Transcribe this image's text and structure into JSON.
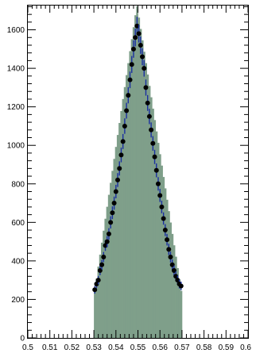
{
  "chart_data": {
    "type": "bar",
    "title": "",
    "xlabel": "",
    "ylabel": "",
    "xlim": [
      0.5,
      0.6
    ],
    "ylim": [
      0,
      1730
    ],
    "x_ticks": [
      {
        "value": 0.5,
        "label": "0.5"
      },
      {
        "value": 0.51,
        "label": "0.51"
      },
      {
        "value": 0.52,
        "label": "0.52"
      },
      {
        "value": 0.53,
        "label": "0.53"
      },
      {
        "value": 0.54,
        "label": "0.54"
      },
      {
        "value": 0.55,
        "label": "0.55"
      },
      {
        "value": 0.56,
        "label": "0.56"
      },
      {
        "value": 0.57,
        "label": "0.57"
      },
      {
        "value": 0.58,
        "label": "0.58"
      },
      {
        "value": 0.59,
        "label": "0.59"
      },
      {
        "value": 0.6,
        "label": "0.6"
      }
    ],
    "y_ticks": [
      {
        "value": 0,
        "label": "0"
      },
      {
        "value": 200,
        "label": "200"
      },
      {
        "value": 400,
        "label": "400"
      },
      {
        "value": 600,
        "label": "600"
      },
      {
        "value": 800,
        "label": "800"
      },
      {
        "value": 1000,
        "label": "1000"
      },
      {
        "value": 1200,
        "label": "1200"
      },
      {
        "value": 1400,
        "label": "1400"
      },
      {
        "value": 1600,
        "label": "1600"
      }
    ],
    "histogram": {
      "x_start": 0.53,
      "x_end": 0.57,
      "peak_x": 0.5495,
      "base_level": 215,
      "peak_level": 1730,
      "fill_color": "#7f9f8a"
    },
    "data_points": {
      "marker_color": "#000000",
      "error_bar_color": "#1a2fa0",
      "x": [
        0.5304,
        0.5312,
        0.532,
        0.5328,
        0.5336,
        0.5344,
        0.5352,
        0.536,
        0.5368,
        0.5376,
        0.5384,
        0.5392,
        0.54,
        0.5408,
        0.5416,
        0.5424,
        0.5432,
        0.544,
        0.5448,
        0.5456,
        0.5464,
        0.5472,
        0.548,
        0.5488,
        0.5496,
        0.5504,
        0.5512,
        0.552,
        0.5528,
        0.5536,
        0.5544,
        0.5552,
        0.556,
        0.5568,
        0.5576,
        0.5584,
        0.5592,
        0.56,
        0.5608,
        0.5616,
        0.5624,
        0.5632,
        0.564,
        0.5648,
        0.5656,
        0.5664,
        0.5672,
        0.568,
        0.5688,
        0.5696
      ],
      "y": [
        250,
        280,
        300,
        350,
        380,
        420,
        480,
        500,
        540,
        600,
        650,
        700,
        760,
        820,
        880,
        950,
        1020,
        1100,
        1180,
        1260,
        1340,
        1420,
        1500,
        1560,
        1620,
        1580,
        1520,
        1460,
        1400,
        1300,
        1220,
        1150,
        1080,
        1010,
        940,
        870,
        800,
        740,
        680,
        620,
        560,
        510,
        460,
        420,
        380,
        350,
        320,
        300,
        280,
        270
      ],
      "errors": [
        20,
        21,
        22,
        24,
        25,
        26,
        28,
        29,
        30,
        32,
        33,
        34,
        35,
        36,
        37,
        38,
        39,
        40,
        41,
        42,
        43,
        44,
        45,
        46,
        47,
        46,
        45,
        44,
        43,
        42,
        41,
        40,
        39,
        38,
        37,
        36,
        35,
        34,
        33,
        32,
        31,
        30,
        29,
        28,
        27,
        26,
        25,
        24,
        23,
        22
      ]
    }
  }
}
